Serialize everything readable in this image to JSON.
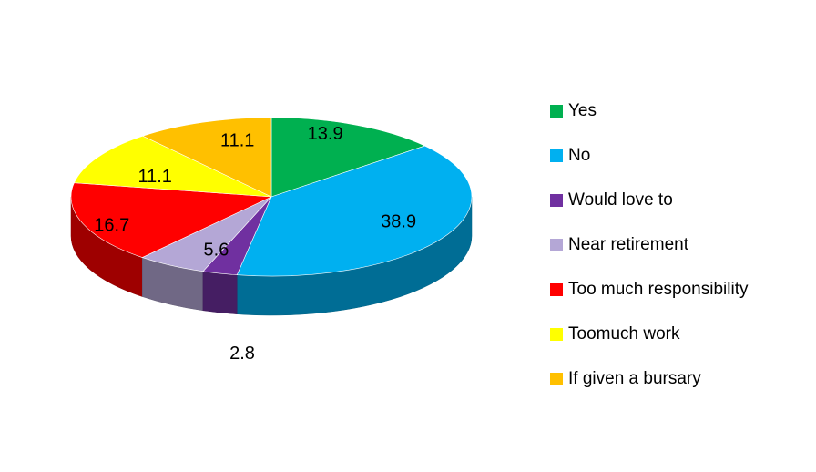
{
  "chart_data": {
    "type": "pie",
    "title": "",
    "categories": [
      "Yes",
      "No",
      "Would love to",
      "Near retirement",
      "Too much responsibility",
      "Toomuch work",
      "If given a bursary"
    ],
    "values": [
      13.9,
      38.9,
      2.8,
      5.6,
      16.7,
      11.1,
      11.1
    ],
    "data_labels": [
      "13.9",
      "38.9",
      "2.8",
      "5.6",
      "16.7",
      "11.1",
      "11.1"
    ],
    "colors": [
      "#00b050",
      "#00b0f0",
      "#7030a0",
      "#b4a7d6",
      "#ff0000",
      "#ffff00",
      "#ffc000"
    ],
    "legend_position": "right",
    "style": "3d-pie"
  }
}
